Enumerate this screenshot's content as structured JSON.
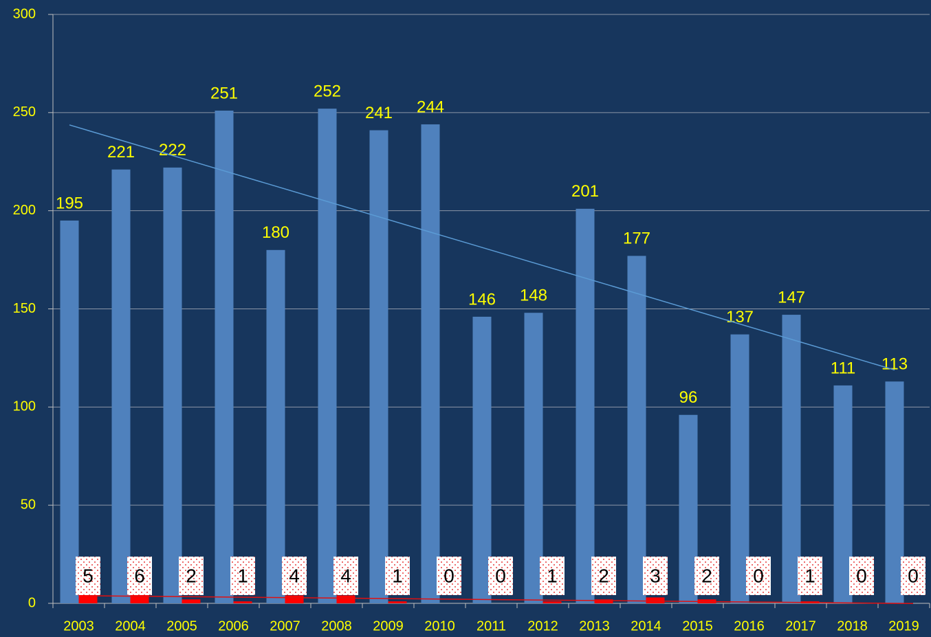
{
  "chart_data": {
    "type": "bar",
    "categories": [
      "2003",
      "2004",
      "2005",
      "2006",
      "2007",
      "2008",
      "2009",
      "2010",
      "2011",
      "2012",
      "2013",
      "2014",
      "2015",
      "2016",
      "2017",
      "2018",
      "2019"
    ],
    "series": [
      {
        "color": "#4f81bd",
        "values": [
          195,
          221,
          222,
          251,
          180,
          252,
          241,
          244,
          146,
          148,
          201,
          177,
          96,
          137,
          147,
          111,
          113
        ]
      },
      {
        "color": "#ff0000",
        "values": [
          5,
          6,
          2,
          1,
          4,
          4,
          1,
          0,
          0,
          1,
          2,
          3,
          2,
          0,
          1,
          0,
          0
        ]
      }
    ],
    "ylim": [
      0,
      300
    ],
    "yticks": [
      0,
      50,
      100,
      150,
      200,
      250,
      300
    ],
    "grid": true,
    "trendline": true
  }
}
